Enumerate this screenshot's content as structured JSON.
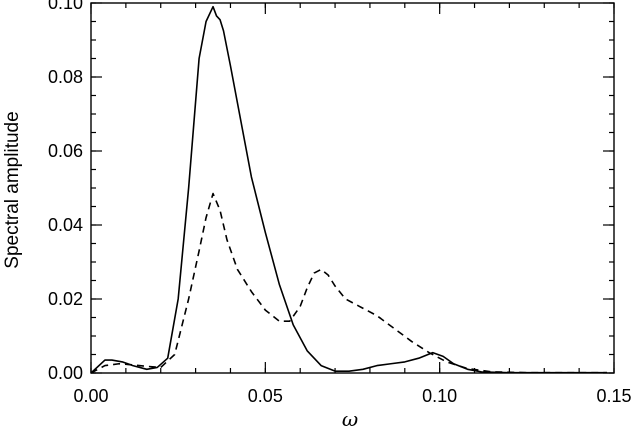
{
  "chart_data": {
    "type": "line",
    "title": "",
    "xlabel": "ω",
    "ylabel": "Spectral amplitude",
    "xlim": [
      0.0,
      0.15
    ],
    "ylim": [
      0.0,
      0.1
    ],
    "grid": false,
    "legend": "none",
    "xticks": [
      0.0,
      0.05,
      0.1,
      0.15
    ],
    "xtick_labels": [
      "0.00",
      "0.05",
      "0.10",
      "0.15"
    ],
    "yticks": [
      0.0,
      0.02,
      0.04,
      0.06,
      0.08,
      0.1
    ],
    "ytick_labels": [
      "0.00",
      "0.02",
      "0.04",
      "0.06",
      "0.08",
      "0.10"
    ],
    "series": [
      {
        "style": "solid",
        "color": "#000000",
        "x": [
          0.0,
          0.004,
          0.006,
          0.009,
          0.012,
          0.016,
          0.019,
          0.022,
          0.025,
          0.028,
          0.031,
          0.033,
          0.035,
          0.036,
          0.037,
          0.038,
          0.04,
          0.043,
          0.046,
          0.05,
          0.054,
          0.058,
          0.062,
          0.066,
          0.07,
          0.074,
          0.078,
          0.082,
          0.086,
          0.09,
          0.094,
          0.098,
          0.101,
          0.104,
          0.108,
          0.112,
          0.12,
          0.13,
          0.148
        ],
        "y": [
          0.0,
          0.0035,
          0.0035,
          0.003,
          0.002,
          0.001,
          0.0015,
          0.004,
          0.02,
          0.05,
          0.085,
          0.095,
          0.099,
          0.0965,
          0.0955,
          0.0925,
          0.083,
          0.068,
          0.053,
          0.038,
          0.024,
          0.013,
          0.006,
          0.002,
          0.0005,
          0.0005,
          0.001,
          0.002,
          0.0025,
          0.003,
          0.004,
          0.0055,
          0.0045,
          0.0025,
          0.001,
          0.0003,
          0.0001,
          0.0001,
          0.0001
        ]
      },
      {
        "style": "dashed",
        "color": "#000000",
        "x": [
          0.0,
          0.004,
          0.008,
          0.012,
          0.016,
          0.02,
          0.024,
          0.028,
          0.031,
          0.033,
          0.035,
          0.037,
          0.039,
          0.042,
          0.046,
          0.05,
          0.054,
          0.057,
          0.06,
          0.062,
          0.064,
          0.066,
          0.068,
          0.07,
          0.073,
          0.077,
          0.082,
          0.087,
          0.092,
          0.097,
          0.102,
          0.108,
          0.115,
          0.125,
          0.14,
          0.148
        ],
        "y": [
          0.0,
          0.002,
          0.0025,
          0.0022,
          0.0018,
          0.0015,
          0.005,
          0.02,
          0.033,
          0.042,
          0.0485,
          0.044,
          0.036,
          0.028,
          0.022,
          0.017,
          0.014,
          0.014,
          0.018,
          0.023,
          0.027,
          0.028,
          0.0265,
          0.0235,
          0.02,
          0.018,
          0.0155,
          0.012,
          0.0085,
          0.0055,
          0.003,
          0.0012,
          0.0003,
          0.0001,
          0.0001,
          0.0001
        ]
      }
    ]
  }
}
